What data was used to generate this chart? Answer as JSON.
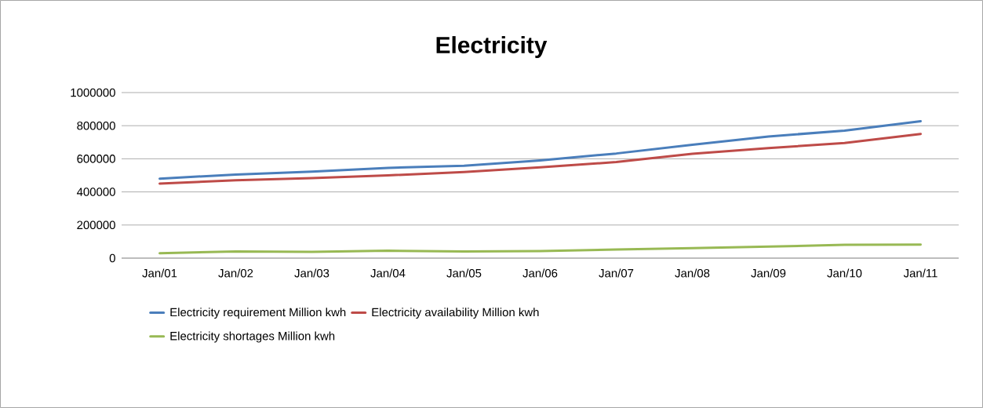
{
  "chart_data": {
    "type": "line",
    "title": "Electricity",
    "categories": [
      "Jan/01",
      "Jan/02",
      "Jan/03",
      "Jan/04",
      "Jan/05",
      "Jan/06",
      "Jan/07",
      "Jan/08",
      "Jan/09",
      "Jan/10",
      "Jan/11"
    ],
    "series": [
      {
        "name": "Electricity requirement Million kwh",
        "color": "#4a7ebb",
        "values": [
          480000,
          505000,
          523000,
          545000,
          558000,
          590000,
          632000,
          685000,
          735000,
          770000,
          827000
        ]
      },
      {
        "name": "Electricity availability Million kwh",
        "color": "#be4b48",
        "values": [
          450000,
          470000,
          483000,
          500000,
          520000,
          548000,
          580000,
          630000,
          665000,
          695000,
          750000
        ]
      },
      {
        "name": "Electricity shortages Million kwh",
        "color": "#98b954",
        "values": [
          30000,
          40000,
          38000,
          45000,
          40000,
          42000,
          52000,
          60000,
          70000,
          80000,
          82000
        ]
      }
    ],
    "ylim": [
      0,
      1000000
    ],
    "yticks": [
      0,
      200000,
      400000,
      600000,
      800000,
      1000000
    ],
    "grid": "y",
    "legend": "bottom",
    "marker": "none",
    "line_style": "solid"
  }
}
